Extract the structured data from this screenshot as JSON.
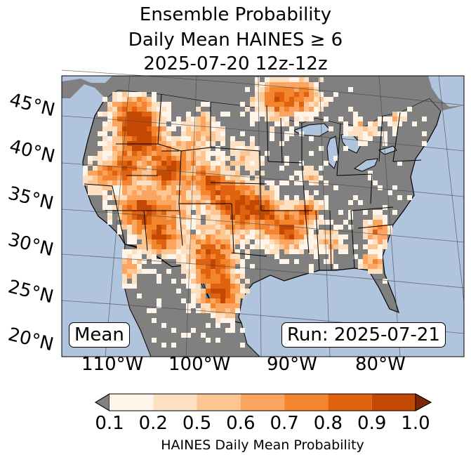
{
  "chart_data": {
    "type": "heatmap",
    "title_lines": [
      "Ensemble Probability",
      "Daily Mean HAINES ≥ 6",
      "2025-07-20 12z-12z"
    ],
    "map_region": "Contiguous United States",
    "lat_labels": [
      "45°N",
      "40°N",
      "35°N",
      "30°N",
      "25°N",
      "20°N"
    ],
    "lon_labels": [
      "110°W",
      "100°W",
      "90°W",
      "80°W"
    ],
    "stat_label": "Mean",
    "run_label": "Run: 2025-07-21",
    "colorbar": {
      "label": "HAINES Daily Mean Probability",
      "ticks": [
        "0.1",
        "0.2",
        "0.5",
        "0.6",
        "0.7",
        "0.8",
        "0.9",
        "1.0"
      ],
      "bins": [
        {
          "range": [
            0.1,
            0.2
          ],
          "color": "#fff4e8"
        },
        {
          "range": [
            0.2,
            0.5
          ],
          "color": "#fde0c1"
        },
        {
          "range": [
            0.5,
            0.6
          ],
          "color": "#fdc590"
        },
        {
          "range": [
            0.6,
            0.7
          ],
          "color": "#fca560"
        },
        {
          "range": [
            0.7,
            0.8
          ],
          "color": "#f4852f"
        },
        {
          "range": [
            0.8,
            0.9
          ],
          "color": "#e0620f"
        },
        {
          "range": [
            0.9,
            1.0
          ],
          "color": "#c24804"
        }
      ],
      "under_color": "#808080",
      "over_color": "#7f2704"
    },
    "colors": {
      "ocean": "#b0c4de",
      "land_below_threshold": "#808080",
      "border": "#000000"
    }
  }
}
